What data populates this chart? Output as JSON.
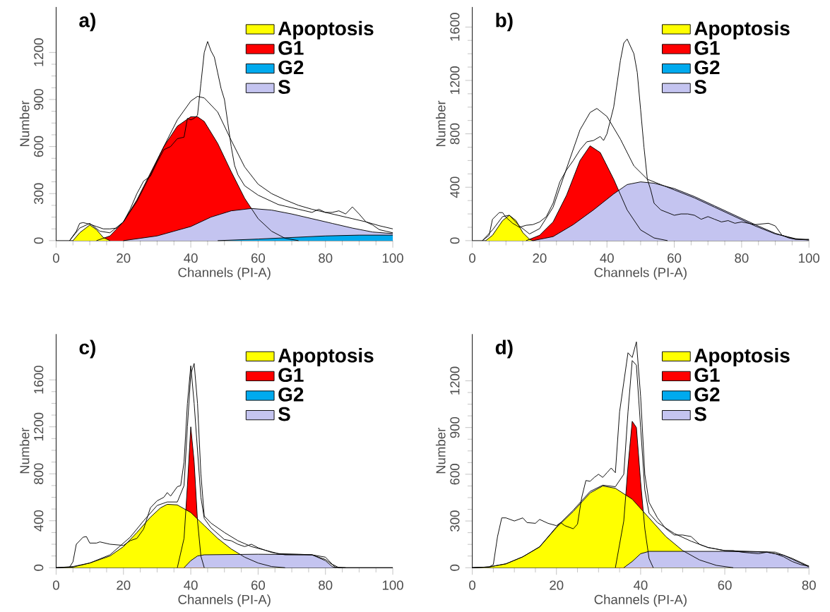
{
  "chart_data": [
    {
      "type": "area",
      "title": "a)",
      "xlabel": "Channels (PI-A)",
      "ylabel": "Number",
      "xlim": [
        0,
        100
      ],
      "ylim": [
        0,
        1490
      ],
      "xticks": [
        0,
        20,
        40,
        60,
        80,
        100
      ],
      "yticks": [
        0,
        300,
        600,
        900,
        1200
      ],
      "legend": "top right",
      "series": [
        {
          "name": "Apoptosis",
          "color": "#ffff00",
          "x": [
            5,
            7,
            10,
            12,
            14,
            16
          ],
          "values": [
            0,
            50,
            100,
            70,
            20,
            0
          ]
        },
        {
          "name": "G1",
          "color": "#ff0000",
          "x": [
            12,
            16,
            20,
            24,
            28,
            32,
            36,
            40,
            42,
            44,
            48,
            52,
            56,
            60,
            64,
            68,
            72
          ],
          "values": [
            0,
            30,
            120,
            260,
            430,
            600,
            730,
            790,
            790,
            760,
            620,
            440,
            270,
            140,
            60,
            15,
            0
          ]
        },
        {
          "name": "G2",
          "color": "#00aaee",
          "x": [
            48,
            60,
            70,
            80,
            90,
            100
          ],
          "values": [
            0,
            10,
            20,
            30,
            35,
            35
          ]
        },
        {
          "name": "S",
          "color": "#c4c4f0",
          "x": [
            20,
            30,
            40,
            46,
            52,
            58,
            64,
            70,
            76,
            82,
            88,
            94,
            100
          ],
          "values": [
            0,
            30,
            90,
            150,
            190,
            205,
            195,
            170,
            140,
            110,
            80,
            55,
            45
          ]
        },
        {
          "type": "line",
          "color": "#000000",
          "x": [
            4,
            7,
            10,
            13,
            16,
            20,
            24,
            28,
            32,
            36,
            40,
            42,
            44,
            48,
            52,
            56,
            60,
            64,
            68,
            72,
            76,
            80,
            84,
            88,
            92,
            96,
            100
          ],
          "values": [
            0,
            80,
            110,
            60,
            50,
            120,
            250,
            420,
            600,
            770,
            890,
            920,
            910,
            820,
            640,
            470,
            360,
            300,
            260,
            225,
            200,
            180,
            160,
            140,
            120,
            95,
            75
          ]
        },
        {
          "type": "line",
          "color": "#000000",
          "x": [
            4,
            6,
            7,
            8,
            10,
            12,
            14,
            16,
            18,
            20,
            22,
            24,
            26,
            28,
            30,
            32,
            34,
            36,
            38,
            39,
            40,
            41,
            42,
            43,
            44,
            45,
            46,
            47,
            48,
            49,
            50,
            51,
            52,
            53,
            54,
            56,
            58,
            60,
            62,
            64,
            66,
            68,
            70,
            72,
            74,
            76,
            78,
            80,
            82,
            84,
            86,
            88,
            90,
            92,
            94,
            96,
            98,
            100
          ],
          "values": [
            0,
            60,
            110,
            115,
            105,
            90,
            75,
            75,
            80,
            120,
            200,
            300,
            380,
            410,
            500,
            580,
            600,
            650,
            660,
            780,
            770,
            780,
            800,
            1000,
            1200,
            1270,
            1210,
            1170,
            1070,
            970,
            900,
            750,
            600,
            480,
            420,
            350,
            320,
            290,
            270,
            250,
            230,
            220,
            210,
            200,
            190,
            180,
            200,
            180,
            180,
            190,
            170,
            215,
            170,
            120,
            100,
            70,
            60,
            50
          ]
        }
      ]
    },
    {
      "type": "area",
      "title": "b)",
      "xlabel": "Channels (PI-A)",
      "ylabel": "Number",
      "xlim": [
        0,
        100
      ],
      "ylim": [
        0,
        1750
      ],
      "xticks": [
        0,
        20,
        40,
        60,
        80,
        100
      ],
      "yticks": [
        0,
        400,
        800,
        1200,
        1600
      ],
      "legend": "top right",
      "series": [
        {
          "name": "Apoptosis",
          "color": "#ffff00",
          "x": [
            4,
            6,
            9,
            11,
            13,
            15,
            17,
            18
          ],
          "values": [
            0,
            40,
            150,
            190,
            150,
            60,
            10,
            0
          ]
        },
        {
          "name": "G1",
          "color": "#ff0000",
          "x": [
            16,
            20,
            24,
            28,
            32,
            35,
            38,
            42,
            46,
            50,
            54,
            58
          ],
          "values": [
            0,
            40,
            140,
            340,
            600,
            710,
            660,
            460,
            230,
            80,
            20,
            0
          ]
        },
        {
          "name": "G2",
          "color": "#00aaee"
        },
        {
          "name": "S",
          "color": "#c4c4f0",
          "x": [
            18,
            24,
            30,
            36,
            42,
            46,
            50,
            54,
            60,
            66,
            72,
            78,
            84,
            90,
            96,
            100
          ],
          "values": [
            0,
            30,
            120,
            230,
            350,
            420,
            440,
            430,
            390,
            330,
            260,
            190,
            120,
            55,
            10,
            5
          ]
        },
        {
          "type": "line",
          "color": "#000000",
          "x": [
            3,
            6,
            9,
            11,
            14,
            17,
            20,
            24,
            28,
            32,
            35,
            37,
            40,
            44,
            48,
            52,
            56,
            60,
            66,
            72,
            78,
            84,
            90,
            96,
            100
          ],
          "values": [
            0,
            80,
            180,
            190,
            110,
            50,
            90,
            250,
            540,
            830,
            960,
            990,
            930,
            760,
            560,
            460,
            420,
            380,
            320,
            250,
            180,
            110,
            50,
            15,
            5
          ]
        },
        {
          "type": "line",
          "color": "#000000",
          "x": [
            3,
            5,
            6,
            8,
            9,
            10,
            12,
            14,
            16,
            18,
            20,
            22,
            24,
            26,
            28,
            30,
            32,
            34,
            36,
            38,
            39,
            40,
            42,
            44,
            45,
            46,
            48,
            49,
            50,
            51,
            52,
            53,
            54,
            56,
            58,
            60,
            62,
            64,
            66,
            68,
            70,
            72,
            74,
            76,
            78,
            80,
            84,
            88,
            90,
            92,
            94,
            96,
            100
          ],
          "values": [
            0,
            40,
            160,
            210,
            210,
            175,
            130,
            100,
            115,
            120,
            140,
            180,
            280,
            440,
            530,
            600,
            680,
            740,
            750,
            780,
            750,
            800,
            1000,
            1350,
            1480,
            1510,
            1400,
            1260,
            980,
            700,
            460,
            380,
            280,
            230,
            210,
            190,
            200,
            200,
            190,
            160,
            180,
            160,
            140,
            150,
            130,
            140,
            120,
            130,
            110,
            40,
            20,
            10,
            10
          ]
        }
      ]
    },
    {
      "type": "area",
      "title": "c)",
      "xlabel": "Channels (PI-A)",
      "ylabel": "Number",
      "xlim": [
        0,
        100
      ],
      "ylim": [
        0,
        1990
      ],
      "xticks": [
        0,
        20,
        40,
        60,
        80,
        100
      ],
      "yticks": [
        0,
        400,
        800,
        1200,
        1600
      ],
      "legend": "top right",
      "series": [
        {
          "name": "Apoptosis",
          "color": "#ffff00",
          "x": [
            0,
            5,
            10,
            16,
            20,
            24,
            28,
            31,
            33,
            36,
            40,
            44,
            48,
            52,
            56,
            60,
            64,
            68
          ],
          "values": [
            0,
            5,
            40,
            100,
            180,
            300,
            430,
            510,
            540,
            535,
            470,
            360,
            250,
            160,
            90,
            40,
            10,
            0
          ]
        },
        {
          "name": "G1",
          "color": "#ff0000",
          "x": [
            36,
            38,
            39,
            40,
            41,
            42,
            43,
            44
          ],
          "values": [
            0,
            250,
            700,
            1200,
            900,
            400,
            100,
            0
          ]
        },
        {
          "name": "G2",
          "color": "#00aaee"
        },
        {
          "name": "S",
          "color": "#c4c4f0",
          "x": [
            38,
            40,
            42,
            44,
            60,
            76,
            80,
            82,
            83
          ],
          "values": [
            0,
            60,
            100,
            110,
            115,
            110,
            60,
            10,
            0
          ]
        },
        {
          "type": "line",
          "color": "#000000",
          "x": [
            0,
            5,
            10,
            16,
            22,
            26,
            30,
            33,
            36,
            38,
            39,
            40,
            41,
            42,
            43,
            44,
            46,
            50,
            54,
            58,
            62,
            66,
            72,
            76,
            80,
            83,
            86
          ],
          "values": [
            0,
            10,
            40,
            110,
            260,
            400,
            530,
            560,
            560,
            700,
            1200,
            1650,
            1740,
            1400,
            800,
            440,
            380,
            300,
            230,
            180,
            150,
            120,
            115,
            110,
            70,
            5,
            0
          ]
        },
        {
          "type": "line",
          "color": "#000000",
          "x": [
            0,
            4,
            5,
            6,
            8,
            9,
            10,
            12,
            13,
            16,
            20,
            22,
            24,
            26,
            28,
            30,
            32,
            33,
            34,
            36,
            37,
            38,
            39,
            40,
            41,
            42,
            43,
            44,
            46,
            48,
            50,
            52,
            54,
            56,
            58,
            60,
            64,
            68,
            72,
            76,
            80,
            82,
            84,
            100
          ],
          "values": [
            0,
            5,
            50,
            200,
            260,
            265,
            210,
            210,
            220,
            200,
            190,
            230,
            250,
            330,
            510,
            570,
            600,
            640,
            610,
            690,
            700,
            900,
            1400,
            1720,
            1400,
            1000,
            600,
            420,
            340,
            290,
            240,
            230,
            200,
            180,
            200,
            170,
            130,
            110,
            110,
            110,
            90,
            30,
            0,
            0
          ]
        }
      ]
    },
    {
      "type": "area",
      "title": "d)",
      "xlabel": "Channels (PI-A)",
      "ylabel": "Number",
      "xlim": [
        0,
        80
      ],
      "ylim": [
        0,
        1500
      ],
      "xticks": [
        0,
        20,
        40,
        60,
        80
      ],
      "yticks": [
        0,
        300,
        600,
        900,
        1200
      ],
      "legend": "top right",
      "series": [
        {
          "name": "Apoptosis",
          "color": "#ffff00",
          "x": [
            0,
            4,
            8,
            12,
            16,
            20,
            24,
            28,
            31,
            34,
            38,
            42,
            46,
            50,
            54,
            58,
            62
          ],
          "values": [
            0,
            5,
            25,
            70,
            133,
            258,
            362,
            480,
            525,
            510,
            440,
            320,
            200,
            110,
            50,
            15,
            0
          ]
        },
        {
          "name": "G1",
          "color": "#ff0000",
          "x": [
            34,
            36,
            37,
            38,
            39,
            40,
            41,
            42,
            43
          ],
          "values": [
            0,
            300,
            650,
            940,
            900,
            550,
            250,
            60,
            0
          ]
        },
        {
          "name": "G2",
          "color": "#00aaee"
        },
        {
          "name": "S",
          "color": "#c4c4f0",
          "x": [
            36,
            38,
            40,
            42,
            50,
            60,
            70,
            74,
            78,
            80
          ],
          "values": [
            0,
            40,
            90,
            105,
            105,
            105,
            100,
            80,
            30,
            5
          ]
        },
        {
          "type": "line",
          "color": "#000000",
          "x": [
            0,
            4,
            8,
            12,
            16,
            20,
            24,
            28,
            31,
            34,
            36,
            37,
            38,
            39,
            40,
            41,
            42,
            44,
            48,
            52,
            56,
            60,
            66,
            72,
            76,
            80
          ],
          "values": [
            0,
            5,
            25,
            70,
            135,
            262,
            370,
            490,
            530,
            520,
            600,
            1000,
            1330,
            1300,
            900,
            500,
            350,
            290,
            220,
            170,
            130,
            110,
            105,
            100,
            60,
            10
          ]
        },
        {
          "type": "line",
          "color": "#000000",
          "x": [
            0,
            4,
            5,
            6,
            7,
            8,
            10,
            12,
            13,
            15,
            16,
            18,
            20,
            21,
            22,
            24,
            25,
            26,
            27,
            28,
            29,
            30,
            31,
            32,
            33,
            34,
            35,
            37,
            38,
            39,
            40,
            41,
            42,
            44,
            46,
            48,
            50,
            52,
            54,
            56,
            58,
            60,
            62,
            64,
            66,
            68,
            70,
            72,
            74,
            76,
            78,
            80
          ],
          "values": [
            0,
            5,
            20,
            200,
            320,
            320,
            300,
            320,
            290,
            285,
            310,
            285,
            270,
            290,
            270,
            250,
            280,
            450,
            560,
            555,
            580,
            600,
            580,
            610,
            640,
            610,
            1000,
            1380,
            1350,
            1450,
            1100,
            600,
            420,
            320,
            250,
            210,
            210,
            200,
            150,
            130,
            120,
            110,
            110,
            100,
            95,
            90,
            100,
            90,
            70,
            40,
            20,
            10
          ]
        }
      ]
    }
  ]
}
